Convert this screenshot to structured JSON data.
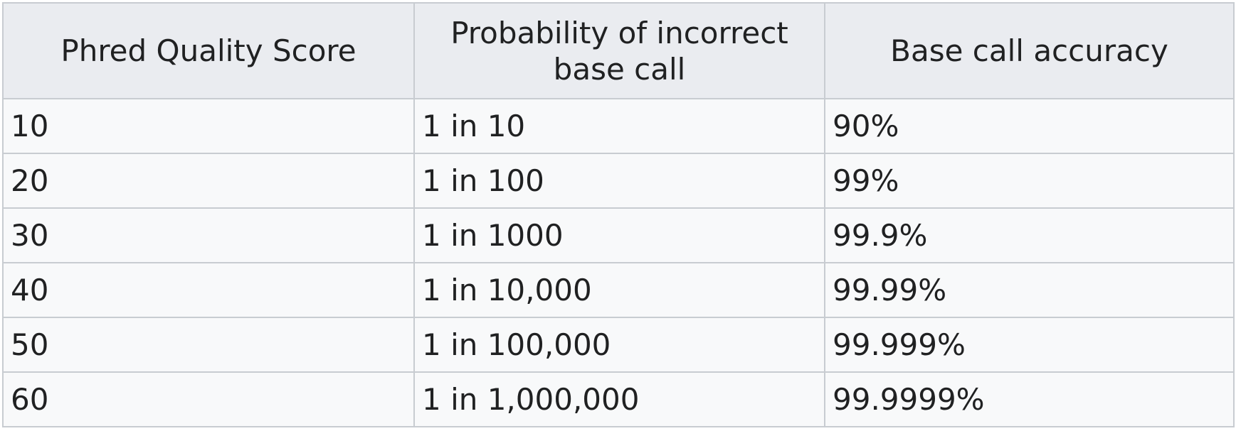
{
  "table": {
    "headers": [
      "Phred Quality Score",
      "Probability of incorrect base call",
      "Base call accuracy"
    ],
    "rows": [
      [
        "10",
        "1 in 10",
        "90%"
      ],
      [
        "20",
        "1 in 100",
        "99%"
      ],
      [
        "30",
        "1 in 1000",
        "99.9%"
      ],
      [
        "40",
        "1 in 10,000",
        "99.99%"
      ],
      [
        "50",
        "1 in 100,000",
        "99.999%"
      ],
      [
        "60",
        "1 in 1,000,000",
        "99.9999%"
      ]
    ]
  },
  "colors": {
    "header_bg": "#eaecf0",
    "cell_bg": "#f8f9fa",
    "border": "#c8ccd1",
    "text": "#202122"
  }
}
